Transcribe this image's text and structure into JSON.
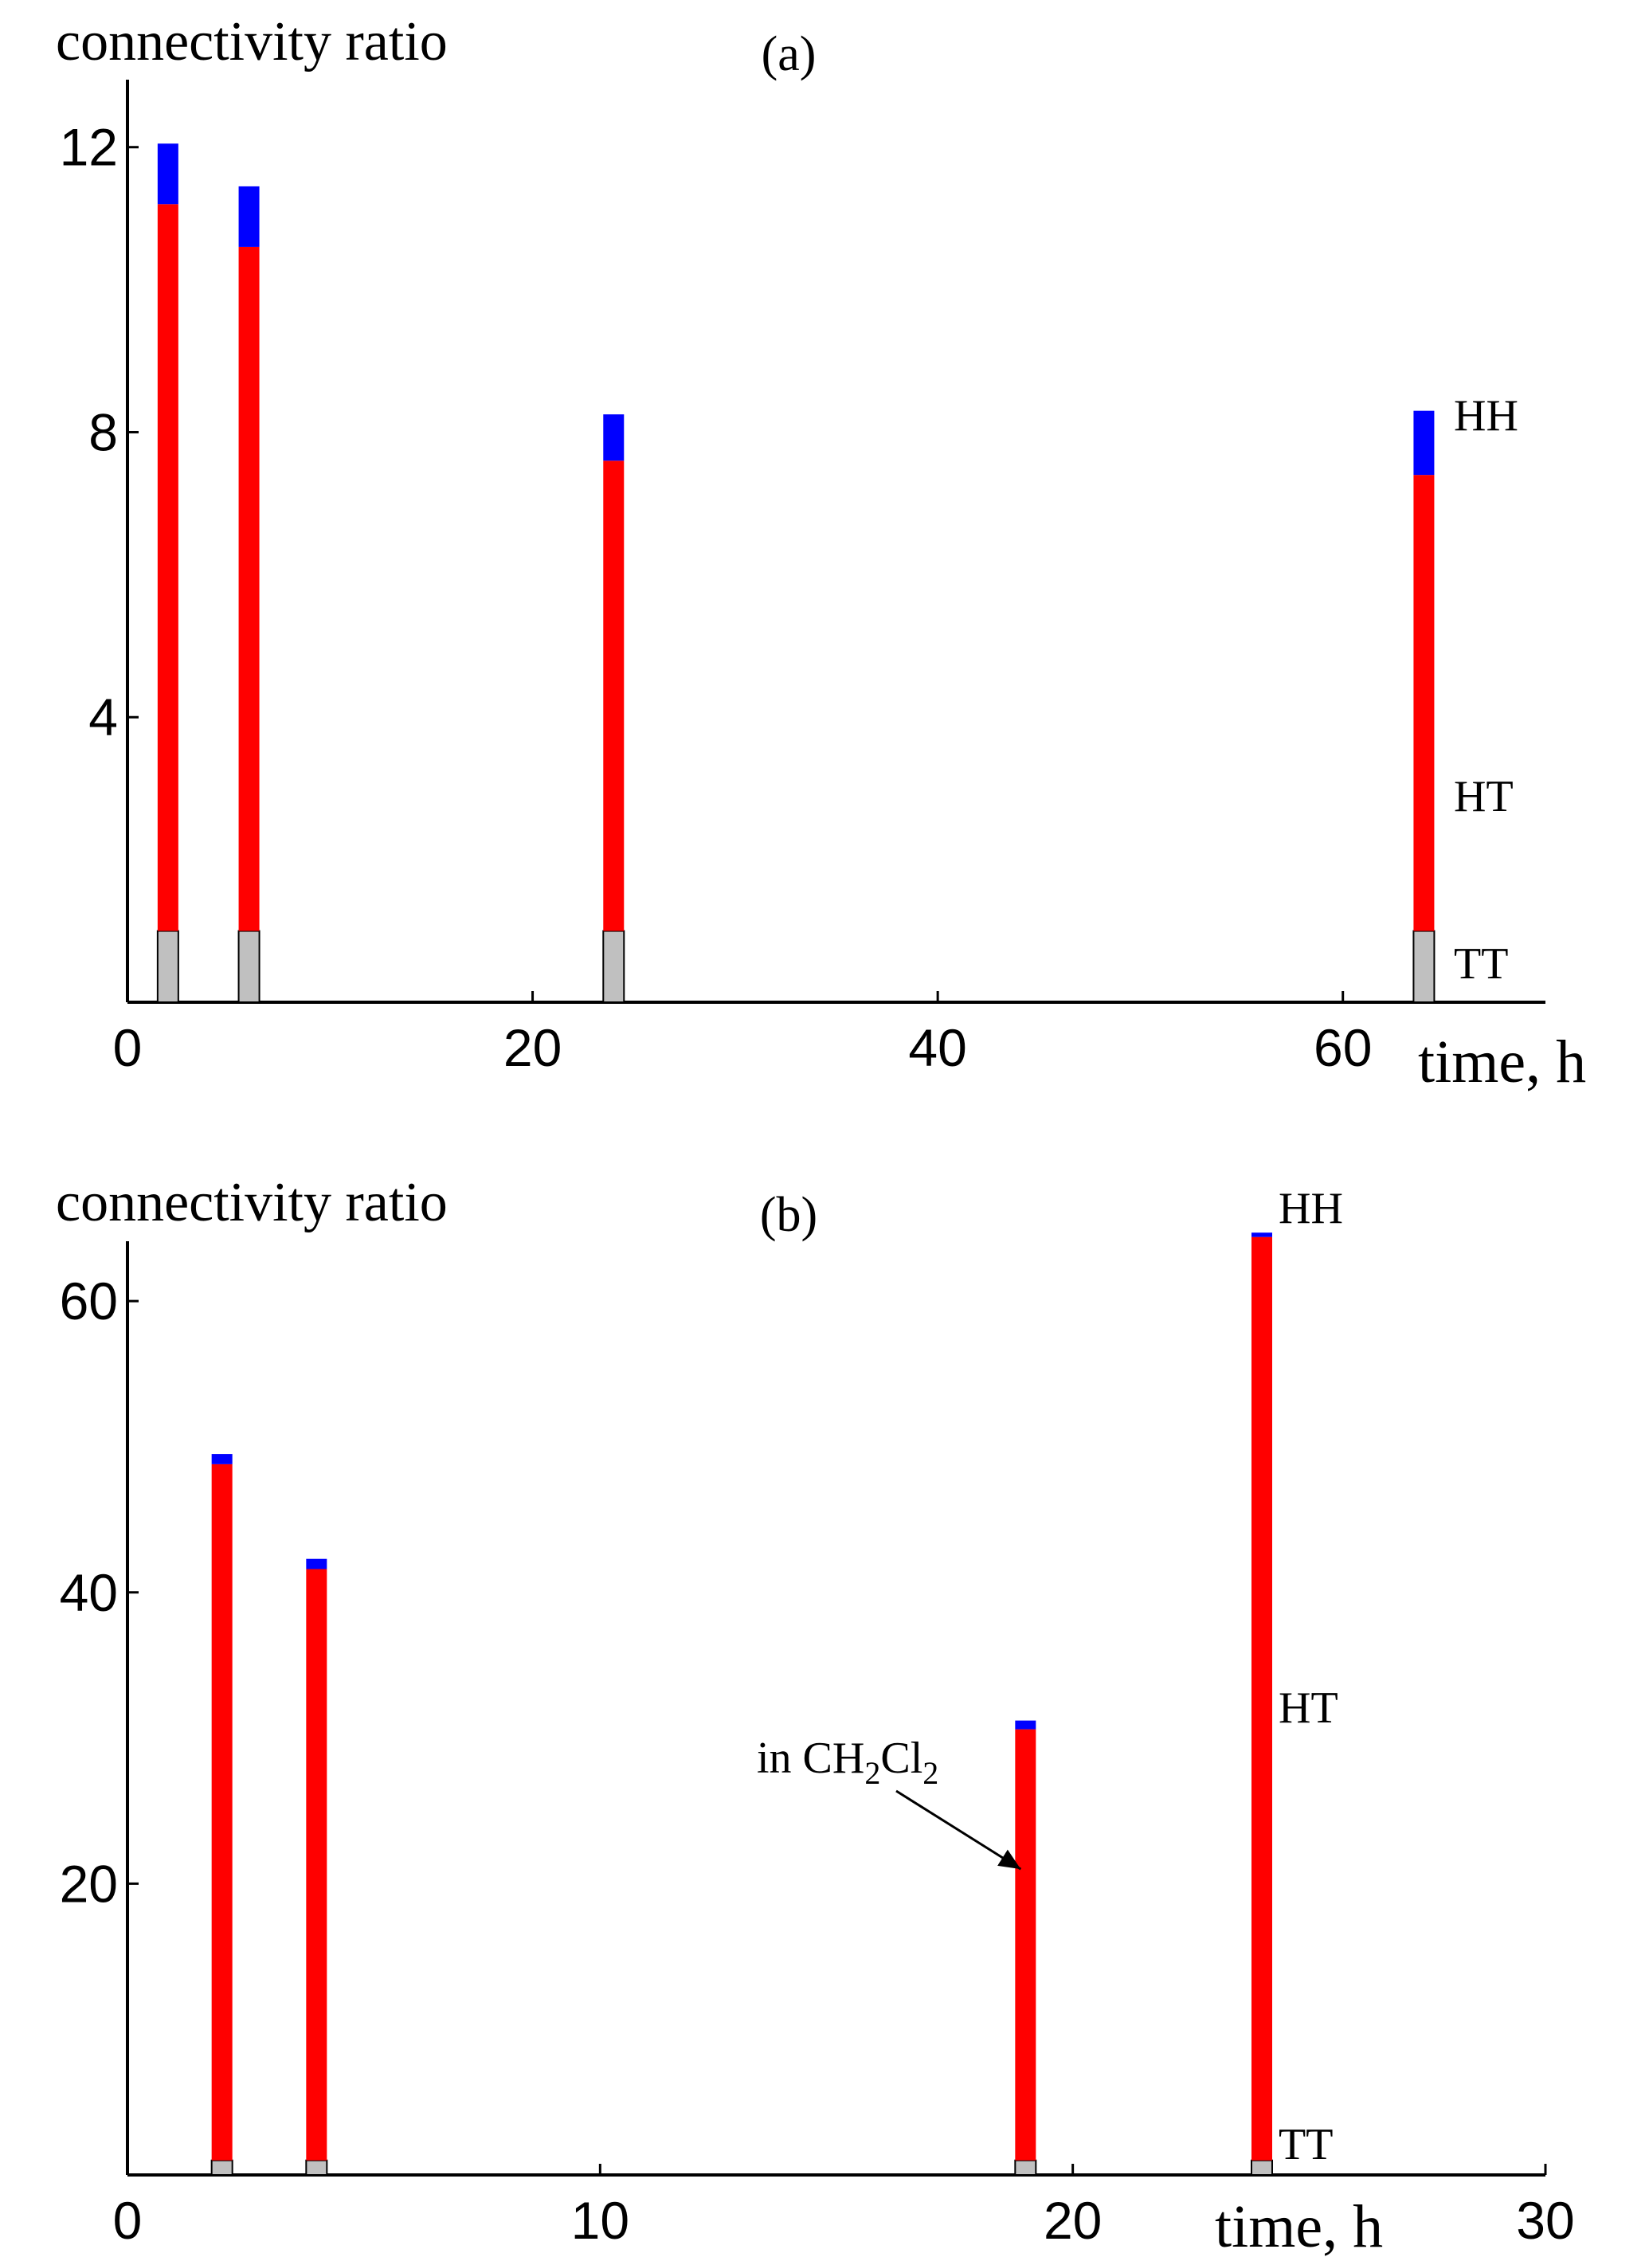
{
  "chart_data": [
    {
      "type": "bar",
      "stacked": true,
      "panel_label": "(a)",
      "ylabel": "connectivity ratio",
      "xlabel": "time, h",
      "xlim": [
        0,
        70
      ],
      "ylim": [
        0,
        12.5
      ],
      "xticks": [
        0,
        20,
        40,
        60
      ],
      "yticks": [
        4,
        8,
        12
      ],
      "x": [
        2,
        6,
        24,
        64
      ],
      "series": [
        {
          "name": "TT",
          "color": "#c0c0c0",
          "values": [
            1,
            1,
            1,
            1
          ]
        },
        {
          "name": "HT",
          "color": "#ff0000",
          "values": [
            10.2,
            9.6,
            6.6,
            6.4
          ]
        },
        {
          "name": "HH",
          "color": "#0000ff",
          "values": [
            0.85,
            0.85,
            0.65,
            0.9
          ]
        }
      ],
      "series_labels": [
        "HH",
        "HT",
        "TT"
      ],
      "annotations": []
    },
    {
      "type": "bar",
      "stacked": true,
      "panel_label": "(b)",
      "ylabel": "connectivity ratio",
      "xlabel": "time, h",
      "xlim": [
        0,
        30
      ],
      "ylim": [
        0,
        64
      ],
      "xticks": [
        0,
        10,
        20,
        30
      ],
      "yticks": [
        20,
        40,
        60
      ],
      "x": [
        2,
        4,
        19,
        24
      ],
      "series": [
        {
          "name": "TT",
          "color": "#c0c0c0",
          "values": [
            1,
            1,
            1,
            1
          ]
        },
        {
          "name": "HT",
          "color": "#ff0000",
          "values": [
            47.8,
            40.6,
            29.6,
            63.4
          ]
        },
        {
          "name": "HH",
          "color": "#0000ff",
          "values": [
            0.7,
            0.7,
            0.6,
            0.3
          ]
        }
      ],
      "series_labels": [
        "HH",
        "HT",
        "TT"
      ],
      "annotations": [
        {
          "text": "in CH",
          "sub1": "2",
          "text2": "Cl",
          "sub2": "2",
          "points_to": {
            "x": 19,
            "y": 21
          }
        }
      ]
    }
  ]
}
